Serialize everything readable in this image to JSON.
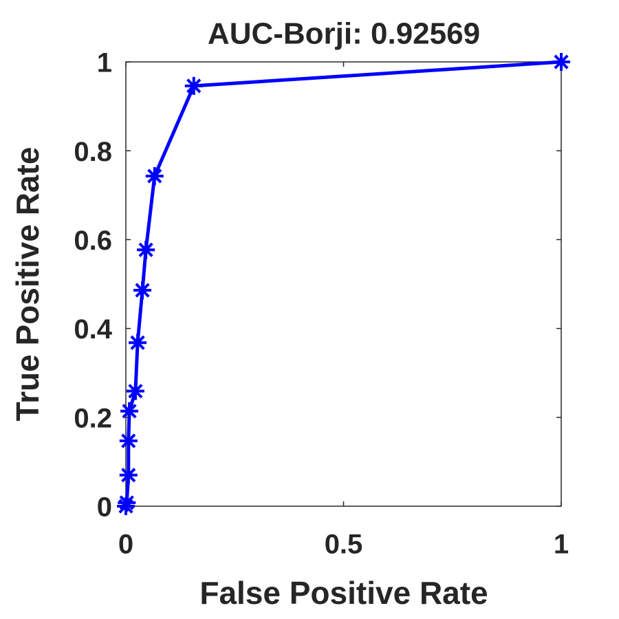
{
  "chart_data": {
    "type": "line",
    "title": "AUC-Borji: 0.92569",
    "x_label": "False Positive Rate",
    "y_label": "True Positive Rate",
    "x": [
      0,
      0.002,
      0.006,
      0.006,
      0.008,
      0.022,
      0.027,
      0.038,
      0.046,
      0.066,
      0.156,
      1
    ],
    "values": [
      0,
      0.008,
      0.07,
      0.147,
      0.214,
      0.259,
      0.368,
      0.486,
      0.577,
      0.743,
      0.946,
      1
    ],
    "color": "#0000ff",
    "xlim": [
      0,
      1
    ],
    "ylim": [
      0,
      1
    ],
    "xticks": [
      0,
      0.5,
      1
    ],
    "yticks": [
      0,
      0.2,
      0.4,
      0.6,
      0.8,
      1
    ]
  }
}
